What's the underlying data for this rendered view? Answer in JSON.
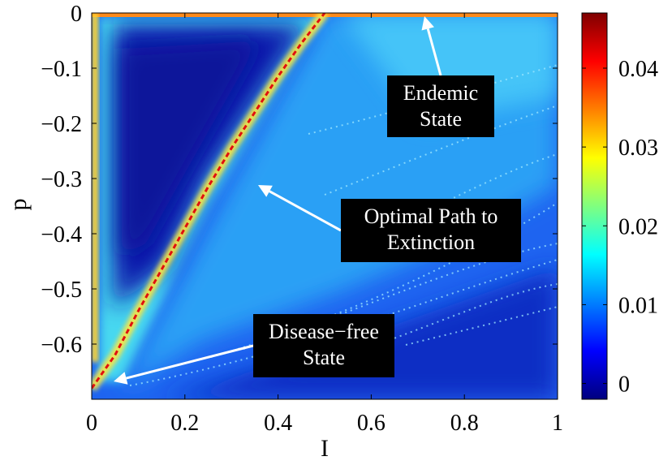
{
  "chart_data": {
    "type": "heatmap",
    "title": "",
    "xlabel": "I",
    "ylabel": "p",
    "xlim": [
      0,
      1
    ],
    "ylim": [
      -0.7,
      0
    ],
    "x_ticks": [
      0,
      0.2,
      0.4,
      0.6,
      0.8,
      1
    ],
    "x_tick_labels": [
      "0",
      "0.2",
      "0.4",
      "0.6",
      "0.8",
      "1"
    ],
    "y_ticks": [
      0,
      -0.1,
      -0.2,
      -0.3,
      -0.4,
      -0.5,
      -0.6
    ],
    "y_tick_labels": [
      "0",
      "−0.1",
      "−0.2",
      "−0.3",
      "−0.4",
      "−0.5",
      "−0.6"
    ],
    "colorbar": {
      "range": [
        -0.002,
        0.047
      ],
      "ticks": [
        0,
        0.01,
        0.02,
        0.03,
        0.04
      ],
      "tick_labels": [
        "0",
        "0.01",
        "0.02",
        "0.03",
        "0.04"
      ],
      "colormap": "jet"
    },
    "optimal_path": {
      "x": [
        0.0,
        0.05,
        0.1,
        0.15,
        0.2,
        0.25,
        0.3,
        0.35,
        0.4,
        0.45,
        0.5
      ],
      "y": [
        -0.68,
        -0.62,
        -0.54,
        -0.465,
        -0.39,
        -0.315,
        -0.245,
        -0.18,
        -0.115,
        -0.055,
        0.0
      ]
    },
    "annotations": [
      {
        "lines": [
          "Endemic",
          "State"
        ],
        "target": [
          0.5,
          0.0
        ]
      },
      {
        "lines": [
          "Optimal Path to",
          "Extinction"
        ],
        "target": [
          0.35,
          -0.3
        ]
      },
      {
        "lines": [
          "Disease−free",
          "State"
        ],
        "target": [
          0.05,
          -0.68
        ]
      }
    ]
  }
}
